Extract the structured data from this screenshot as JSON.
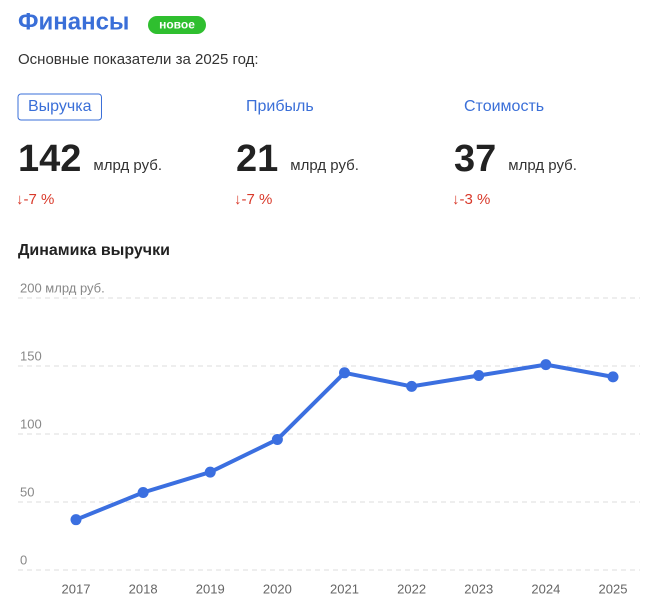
{
  "header": {
    "title": "Финансы",
    "badge": "новое",
    "subtitle": "Основные показатели за 2025 год:"
  },
  "metrics": [
    {
      "tab": "Выручка",
      "value": "142",
      "unit": "млрд руб.",
      "change": "↓-7 %"
    },
    {
      "tab": "Прибыль",
      "value": "21",
      "unit": "млрд руб.",
      "change": "↓-7 %"
    },
    {
      "tab": "Стоимость",
      "value": "37",
      "unit": "млрд руб.",
      "change": "↓-3 %"
    }
  ],
  "chart_data": {
    "type": "line",
    "title": "Динамика выручки",
    "categories": [
      "2017",
      "2018",
      "2019",
      "2020",
      "2021",
      "2022",
      "2023",
      "2024",
      "2025"
    ],
    "values": [
      37,
      57,
      72,
      96,
      145,
      135,
      143,
      151,
      142
    ],
    "color": "#3b6fe0",
    "ylim": [
      0,
      200
    ],
    "yticks": [
      0,
      50,
      100,
      150,
      {
        "value": 200,
        "label": "200 млрд руб."
      }
    ],
    "grid": true
  }
}
